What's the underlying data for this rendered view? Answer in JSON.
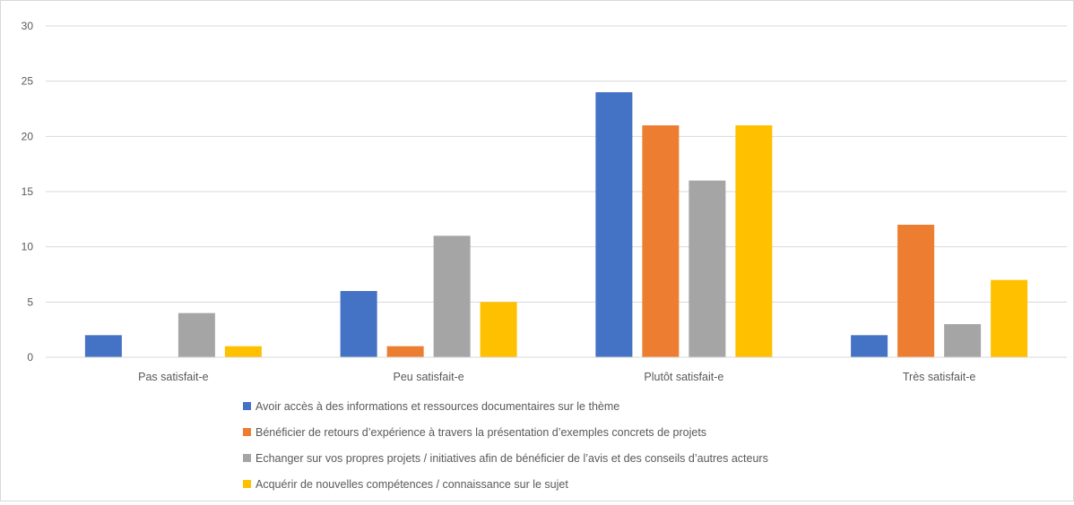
{
  "chart_data": {
    "type": "bar",
    "title": "",
    "xlabel": "",
    "ylabel": "",
    "ylim": [
      0,
      30
    ],
    "yticks": [
      0,
      5,
      10,
      15,
      20,
      25,
      30
    ],
    "grid": true,
    "legend_position": "bottom",
    "categories": [
      "Pas satisfait-e",
      "Peu satisfait-e",
      "Plutôt satisfait-e",
      "Très satisfait-e"
    ],
    "series": [
      {
        "name": "Avoir accès à des informations et ressources documentaires sur le thème",
        "color": "#4472C4",
        "values": [
          2,
          6,
          24,
          2
        ]
      },
      {
        "name": "Bénéficier de retours d’expérience à travers la présentation d’exemples concrets de projets",
        "color": "#ED7D31",
        "values": [
          0,
          1,
          21,
          12
        ]
      },
      {
        "name": "Echanger sur vos propres projets / initiatives afin de bénéficier de l’avis et des conseils d’autres acteurs",
        "color": "#A5A5A5",
        "values": [
          4,
          11,
          16,
          3
        ]
      },
      {
        "name": "Acquérir de nouvelles compétences / connaissance sur le sujet",
        "color": "#FFC000",
        "values": [
          1,
          5,
          21,
          7
        ]
      }
    ]
  }
}
